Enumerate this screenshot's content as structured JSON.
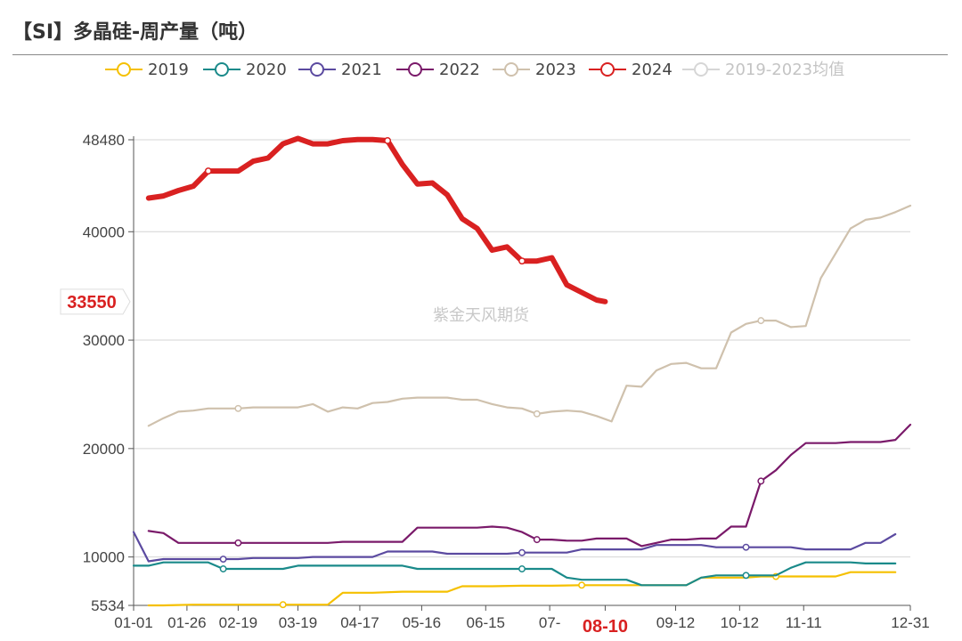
{
  "title": "【SI】多晶硅-周产量（吨）",
  "watermark": "紫金天风期货",
  "chart_data": {
    "type": "line",
    "title": "【SI】多晶硅-周产量（吨）",
    "y_ticks": [
      "48480",
      "40000",
      "30000",
      "20000",
      "10000",
      "5534"
    ],
    "ylim": [
      5534,
      48480
    ],
    "x_ticks": [
      "01-01",
      "01-26",
      "02-19",
      "03-19",
      "04-17",
      "05-16",
      "06-15",
      "07-",
      "08-10",
      "09-12",
      "10-12",
      "11-11",
      "12-31"
    ],
    "x_tick_days": [
      0,
      25,
      49,
      77,
      106,
      135,
      165,
      195,
      221,
      254,
      284,
      314,
      364
    ],
    "xlim_days": [
      0,
      364
    ],
    "highlight": {
      "x_label": "08-10",
      "y_label": "33550"
    },
    "legend_position": "top",
    "grid": true,
    "series": [
      {
        "name": "2019",
        "color": "#f5c000",
        "width": 2.2,
        "x": [
          7,
          14,
          28,
          42,
          56,
          70,
          84,
          91,
          98,
          105,
          112,
          126,
          133,
          140,
          147,
          154,
          161,
          168,
          182,
          196,
          210,
          224,
          231,
          238,
          245,
          252,
          259,
          266,
          273,
          280,
          287,
          294,
          301,
          308,
          315,
          322,
          329,
          336,
          343,
          350,
          357
        ],
        "values": [
          5534,
          5534,
          5600,
          5600,
          5600,
          5600,
          5600,
          5600,
          6700,
          6700,
          6700,
          6800,
          6800,
          6800,
          6800,
          7300,
          7300,
          7300,
          7350,
          7350,
          7400,
          7400,
          7400,
          7400,
          7400,
          7400,
          7400,
          8100,
          8100,
          8100,
          8100,
          8200,
          8200,
          8200,
          8200,
          8200,
          8200,
          8600,
          8600,
          8600,
          8600
        ]
      },
      {
        "name": "2020",
        "color": "#1a8a8a",
        "width": 2.2,
        "x": [
          0,
          7,
          14,
          21,
          28,
          35,
          42,
          49,
          56,
          63,
          70,
          77,
          84,
          91,
          98,
          105,
          112,
          119,
          126,
          133,
          140,
          147,
          154,
          161,
          168,
          175,
          182,
          189,
          196,
          203,
          210,
          217,
          224,
          231,
          238,
          245,
          252,
          259,
          266,
          273,
          280,
          287,
          294,
          301,
          308,
          315,
          322,
          329,
          336,
          343,
          350,
          357
        ],
        "values": [
          9200,
          9200,
          9500,
          9500,
          9500,
          9500,
          8900,
          8900,
          8900,
          8900,
          8900,
          9200,
          9200,
          9200,
          9200,
          9200,
          9200,
          9200,
          9200,
          8900,
          8900,
          8900,
          8900,
          8900,
          8900,
          8900,
          8900,
          8900,
          8900,
          8100,
          7900,
          7900,
          7900,
          7900,
          7400,
          7400,
          7400,
          7400,
          8100,
          8300,
          8300,
          8300,
          8300,
          8300,
          9000,
          9500,
          9500,
          9500,
          9500,
          9400,
          9400,
          9400
        ]
      },
      {
        "name": "2021",
        "color": "#5b4aa0",
        "width": 2.2,
        "x": [
          0,
          7,
          14,
          21,
          28,
          35,
          42,
          49,
          56,
          63,
          70,
          77,
          84,
          91,
          98,
          105,
          112,
          119,
          126,
          133,
          140,
          147,
          154,
          161,
          168,
          175,
          182,
          189,
          196,
          203,
          210,
          217,
          224,
          231,
          238,
          245,
          252,
          259,
          266,
          273,
          280,
          287,
          294,
          301,
          308,
          315,
          322,
          329,
          336,
          343,
          350,
          357
        ],
        "values": [
          12300,
          9600,
          9800,
          9800,
          9800,
          9800,
          9800,
          9800,
          9900,
          9900,
          9900,
          9900,
          10000,
          10000,
          10000,
          10000,
          10000,
          10500,
          10500,
          10500,
          10500,
          10300,
          10300,
          10300,
          10300,
          10300,
          10400,
          10400,
          10400,
          10400,
          10700,
          10700,
          10700,
          10700,
          10700,
          11100,
          11100,
          11100,
          11100,
          10900,
          10900,
          10900,
          10900,
          10900,
          10900,
          10700,
          10700,
          10700,
          10700,
          11300,
          11300,
          12100
        ]
      },
      {
        "name": "2022",
        "color": "#7a1a6a",
        "width": 2.2,
        "x": [
          7,
          14,
          21,
          28,
          35,
          42,
          49,
          56,
          63,
          70,
          77,
          84,
          91,
          98,
          105,
          112,
          119,
          126,
          133,
          140,
          147,
          154,
          161,
          168,
          175,
          182,
          189,
          196,
          203,
          210,
          217,
          224,
          231,
          238,
          245,
          252,
          259,
          266,
          273,
          280,
          287,
          294,
          301,
          308,
          315,
          322,
          329,
          336,
          343,
          350,
          357,
          364
        ],
        "values": [
          12400,
          12200,
          11300,
          11300,
          11300,
          11300,
          11300,
          11300,
          11300,
          11300,
          11300,
          11300,
          11300,
          11400,
          11400,
          11400,
          11400,
          11400,
          12700,
          12700,
          12700,
          12700,
          12700,
          12800,
          12700,
          12300,
          11600,
          11600,
          11500,
          11500,
          11700,
          11700,
          11700,
          11000,
          11300,
          11600,
          11600,
          11700,
          11700,
          12800,
          12800,
          17000,
          18000,
          19400,
          20500,
          20500,
          20500,
          20600,
          20600,
          20600,
          20800,
          22200
        ]
      },
      {
        "name": "2023",
        "color": "#cfc1ad",
        "width": 2.2,
        "x": [
          7,
          14,
          21,
          28,
          35,
          42,
          49,
          56,
          63,
          70,
          77,
          84,
          91,
          98,
          105,
          112,
          119,
          126,
          133,
          140,
          147,
          154,
          161,
          168,
          175,
          182,
          189,
          196,
          203,
          210,
          217,
          224,
          231,
          238,
          245,
          252,
          259,
          266,
          273,
          280,
          287,
          294,
          301,
          308,
          315,
          322,
          329,
          336,
          343,
          350,
          357,
          364
        ],
        "values": [
          22100,
          22800,
          23400,
          23500,
          23700,
          23700,
          23700,
          23800,
          23800,
          23800,
          23800,
          24100,
          23400,
          23800,
          23700,
          24200,
          24300,
          24600,
          24700,
          24700,
          24700,
          24500,
          24500,
          24100,
          23800,
          23700,
          23200,
          23400,
          23500,
          23400,
          23000,
          22500,
          25800,
          25700,
          27200,
          27800,
          27900,
          27400,
          27400,
          30700,
          31500,
          31800,
          31800,
          31200,
          31300,
          35700,
          38000,
          40300,
          41100,
          41300,
          41800,
          42400
        ]
      },
      {
        "name": "2024",
        "color": "#d92121",
        "width": 6,
        "x": [
          7,
          14,
          21,
          28,
          35,
          42,
          49,
          56,
          63,
          70,
          77,
          84,
          91,
          98,
          105,
          112,
          119,
          126,
          133,
          140,
          147,
          154,
          161,
          168,
          175,
          182,
          189,
          196,
          203,
          210,
          217,
          221
        ],
        "values": [
          43100,
          43300,
          43800,
          44200,
          45600,
          45600,
          45600,
          46500,
          46800,
          48100,
          48600,
          48100,
          48100,
          48400,
          48500,
          48500,
          48400,
          46200,
          44400,
          44500,
          43400,
          41200,
          40300,
          38300,
          38600,
          37300,
          37300,
          37600,
          35100,
          34400,
          33700,
          33550
        ]
      },
      {
        "name": "2019-2023均值",
        "color": "#d6d6d6",
        "width": 2,
        "values": []
      }
    ]
  }
}
